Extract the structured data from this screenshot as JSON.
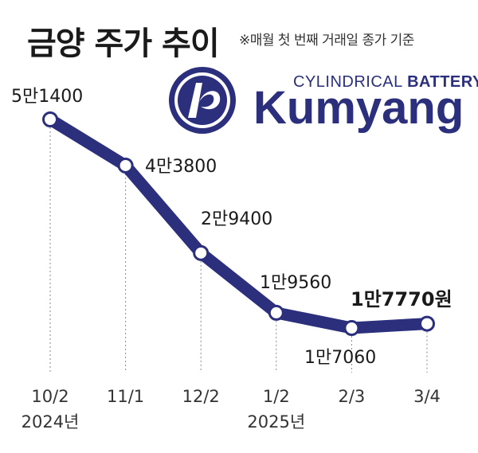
{
  "title": "금양 주가 추이",
  "note": "※매월 첫 번째 거래일 종가 기준",
  "logo": {
    "tagline_light": "CYLINDRICAL ",
    "tagline_bold": "BATTERY",
    "name": "Kumyang"
  },
  "colors": {
    "line": "#2b2f7c",
    "marker_fill": "#ffffff",
    "guide": "#888888"
  },
  "chart_data": {
    "type": "line",
    "title": "금양 주가 추이",
    "categories": [
      "10/2",
      "11/1",
      "12/2",
      "1/2",
      "2/3",
      "3/4"
    ],
    "year_labels": [
      {
        "index": 0,
        "label": "2024년"
      },
      {
        "index": 3,
        "label": "2025년"
      }
    ],
    "series": [
      {
        "values": [
          51400,
          43800,
          29400,
          19560,
          17060,
          17770
        ],
        "value_labels": [
          "5만1400",
          "4만3800",
          "2만9400",
          "1만9560",
          "1만7060",
          "1만7770원"
        ]
      }
    ],
    "ylim": [
      12000,
      55000
    ],
    "grid": false
  }
}
